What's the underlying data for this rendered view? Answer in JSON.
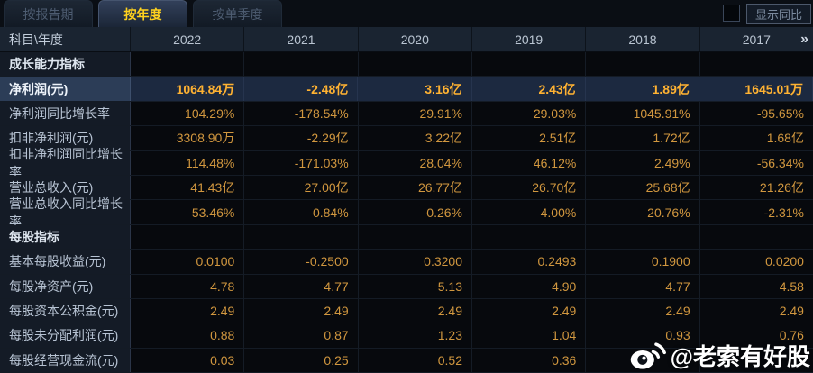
{
  "tabs": [
    {
      "label": "按报告期",
      "active": false
    },
    {
      "label": "按年度",
      "active": true
    },
    {
      "label": "按单季度",
      "active": false
    }
  ],
  "controls": {
    "show_yoy_label": "显示同比",
    "checkbox_checked": false
  },
  "table": {
    "corner_label": "科目\\年度",
    "years": [
      "2022",
      "2021",
      "2020",
      "2019",
      "2018",
      "2017"
    ],
    "more_icon": "»",
    "rows": [
      {
        "type": "section",
        "label": "成长能力指标",
        "values": [
          "",
          "",
          "",
          "",
          "",
          ""
        ]
      },
      {
        "type": "data",
        "highlight": true,
        "label": "净利润(元)",
        "values": [
          "1064.84万",
          "-2.48亿",
          "3.16亿",
          "2.43亿",
          "1.89亿",
          "1645.01万"
        ]
      },
      {
        "type": "data",
        "label": "净利润同比增长率",
        "values": [
          "104.29%",
          "-178.54%",
          "29.91%",
          "29.03%",
          "1045.91%",
          "-95.65%"
        ]
      },
      {
        "type": "data",
        "label": "扣非净利润(元)",
        "values": [
          "3308.90万",
          "-2.29亿",
          "3.22亿",
          "2.51亿",
          "1.72亿",
          "1.68亿"
        ]
      },
      {
        "type": "data",
        "label": "扣非净利润同比增长率",
        "values": [
          "114.48%",
          "-171.03%",
          "28.04%",
          "46.12%",
          "2.49%",
          "-56.34%"
        ]
      },
      {
        "type": "data",
        "label": "营业总收入(元)",
        "values": [
          "41.43亿",
          "27.00亿",
          "26.77亿",
          "26.70亿",
          "25.68亿",
          "21.26亿"
        ]
      },
      {
        "type": "data",
        "label": "营业总收入同比增长率",
        "values": [
          "53.46%",
          "0.84%",
          "0.26%",
          "4.00%",
          "20.76%",
          "-2.31%"
        ]
      },
      {
        "type": "section",
        "label": "每股指标",
        "values": [
          "",
          "",
          "",
          "",
          "",
          ""
        ]
      },
      {
        "type": "data",
        "label": "基本每股收益(元)",
        "values": [
          "0.0100",
          "-0.2500",
          "0.3200",
          "0.2493",
          "0.1900",
          "0.0200"
        ]
      },
      {
        "type": "data",
        "label": "每股净资产(元)",
        "values": [
          "4.78",
          "4.77",
          "5.13",
          "4.90",
          "4.77",
          "4.58"
        ]
      },
      {
        "type": "data",
        "label": "每股资本公积金(元)",
        "values": [
          "2.49",
          "2.49",
          "2.49",
          "2.49",
          "2.49",
          "2.49"
        ]
      },
      {
        "type": "data",
        "label": "每股未分配利润(元)",
        "values": [
          "0.88",
          "0.87",
          "1.23",
          "1.04",
          "0.93",
          "0.76"
        ]
      },
      {
        "type": "data",
        "label": "每股经营现金流(元)",
        "values": [
          "0.03",
          "0.25",
          "0.52",
          "0.36",
          "",
          ""
        ]
      }
    ]
  },
  "watermark": {
    "icon": "weibo-logo",
    "text": "@老索有好股"
  },
  "appearance": {
    "active_tab_text": "#ffd21e",
    "value_text": "#d1973f",
    "highlight_value_text": "#ffb232",
    "highlight_row_bg": "#1c2940",
    "header_bg": "#1a2431",
    "label_col_bg": "#141b26",
    "cell_bg": "#07090d"
  }
}
